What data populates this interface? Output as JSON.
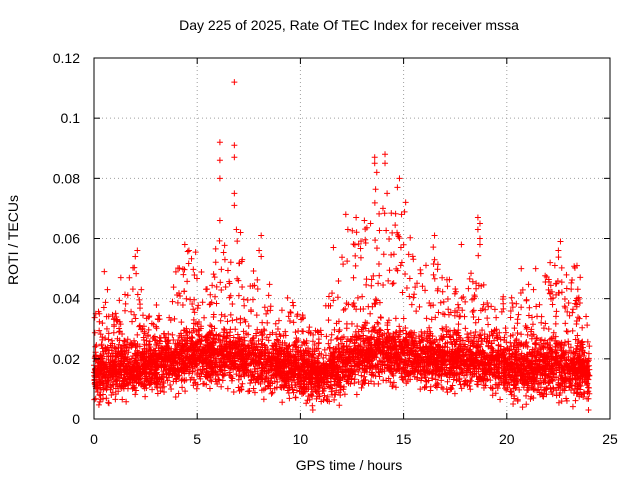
{
  "chart_data": {
    "type": "scatter",
    "title": "Day 225 of 2025, Rate Of TEC Index for receiver mssa",
    "xlabel": "GPS time / hours",
    "ylabel": "ROTI / TECUs",
    "xlim": [
      0,
      25
    ],
    "ylim": [
      0,
      0.12
    ],
    "xticks": [
      "0",
      "5",
      "10",
      "15",
      "20",
      "25"
    ],
    "yticks": [
      "0",
      "0.02",
      "0.04",
      "0.06",
      "0.08",
      "0.1",
      "0.12"
    ],
    "grid": true,
    "marker": "+",
    "color": "#ff0000",
    "data_range_hours": [
      0,
      24
    ],
    "baseline_profile": [
      [
        0,
        0.014
      ],
      [
        1,
        0.016
      ],
      [
        2,
        0.016
      ],
      [
        3,
        0.018
      ],
      [
        4,
        0.019
      ],
      [
        5,
        0.02
      ],
      [
        6,
        0.021
      ],
      [
        7,
        0.02
      ],
      [
        8,
        0.018
      ],
      [
        9,
        0.017
      ],
      [
        10,
        0.016
      ],
      [
        11,
        0.014
      ],
      [
        12,
        0.018
      ],
      [
        13,
        0.021
      ],
      [
        14,
        0.022
      ],
      [
        15,
        0.021
      ],
      [
        16,
        0.02
      ],
      [
        17,
        0.019
      ],
      [
        18,
        0.019
      ],
      [
        19,
        0.018
      ],
      [
        20,
        0.017
      ],
      [
        21,
        0.016
      ],
      [
        22,
        0.017
      ],
      [
        23,
        0.016
      ],
      [
        24,
        0.015
      ]
    ],
    "envelope_profile": [
      [
        0,
        0.033
      ],
      [
        0.5,
        0.049
      ],
      [
        1,
        0.035
      ],
      [
        1.5,
        0.048
      ],
      [
        2,
        0.057
      ],
      [
        2.5,
        0.033
      ],
      [
        3,
        0.04
      ],
      [
        3.5,
        0.038
      ],
      [
        4,
        0.05
      ],
      [
        4.5,
        0.058
      ],
      [
        5,
        0.055
      ],
      [
        5.5,
        0.05
      ],
      [
        6,
        0.06
      ],
      [
        6.5,
        0.058
      ],
      [
        7,
        0.06
      ],
      [
        7.5,
        0.045
      ],
      [
        8,
        0.055
      ],
      [
        8.5,
        0.045
      ],
      [
        9,
        0.042
      ],
      [
        9.5,
        0.04
      ],
      [
        10,
        0.038
      ],
      [
        10.5,
        0.03
      ],
      [
        11,
        0.03
      ],
      [
        11.5,
        0.05
      ],
      [
        12,
        0.06
      ],
      [
        12.5,
        0.065
      ],
      [
        13,
        0.065
      ],
      [
        13.5,
        0.075
      ],
      [
        14,
        0.085
      ],
      [
        14.5,
        0.078
      ],
      [
        15,
        0.075
      ],
      [
        15.5,
        0.055
      ],
      [
        16,
        0.052
      ],
      [
        16.5,
        0.06
      ],
      [
        17,
        0.05
      ],
      [
        17.5,
        0.045
      ],
      [
        18,
        0.05
      ],
      [
        18.5,
        0.062
      ],
      [
        19,
        0.045
      ],
      [
        19.5,
        0.04
      ],
      [
        20,
        0.042
      ],
      [
        20.5,
        0.05
      ],
      [
        21,
        0.045
      ],
      [
        21.5,
        0.045
      ],
      [
        22,
        0.05
      ],
      [
        22.5,
        0.057
      ],
      [
        23,
        0.052
      ],
      [
        23.5,
        0.05
      ],
      [
        24,
        0.03
      ]
    ],
    "outliers": [
      [
        6.8,
        0.112
      ],
      [
        6.1,
        0.092
      ],
      [
        6.8,
        0.091
      ],
      [
        6.8,
        0.087
      ],
      [
        6.1,
        0.086
      ],
      [
        6.1,
        0.08
      ],
      [
        6.8,
        0.075
      ],
      [
        6.8,
        0.071
      ],
      [
        6.1,
        0.066
      ],
      [
        6.9,
        0.063
      ],
      [
        13.6,
        0.087
      ],
      [
        13.6,
        0.085
      ],
      [
        14.1,
        0.088
      ],
      [
        14.1,
        0.085
      ],
      [
        13.7,
        0.082
      ],
      [
        14.8,
        0.08
      ],
      [
        14.7,
        0.077
      ],
      [
        14.2,
        0.075
      ],
      [
        15.1,
        0.072
      ],
      [
        14.0,
        0.07
      ],
      [
        14.9,
        0.068
      ],
      [
        13.4,
        0.065
      ],
      [
        12.2,
        0.068
      ],
      [
        12.7,
        0.067
      ],
      [
        13.1,
        0.066
      ],
      [
        18.6,
        0.067
      ],
      [
        18.7,
        0.065
      ],
      [
        18.6,
        0.063
      ],
      [
        18.7,
        0.06
      ],
      [
        18.7,
        0.058
      ],
      [
        16.5,
        0.061
      ],
      [
        17.8,
        0.058
      ],
      [
        2.1,
        0.056
      ],
      [
        2.0,
        0.054
      ],
      [
        4.4,
        0.058
      ],
      [
        4.6,
        0.056
      ],
      [
        8.1,
        0.061
      ],
      [
        8.0,
        0.056
      ],
      [
        8.1,
        0.054
      ],
      [
        20.7,
        0.05
      ],
      [
        22.6,
        0.059
      ],
      [
        22.5,
        0.056
      ],
      [
        23.4,
        0.051
      ],
      [
        0.5,
        0.049
      ],
      [
        1.3,
        0.047
      ],
      [
        21.4,
        0.05
      ],
      [
        22.1,
        0.052
      ],
      [
        11.6,
        0.057
      ],
      [
        12.3,
        0.063
      ],
      [
        7.1,
        0.062
      ]
    ]
  }
}
